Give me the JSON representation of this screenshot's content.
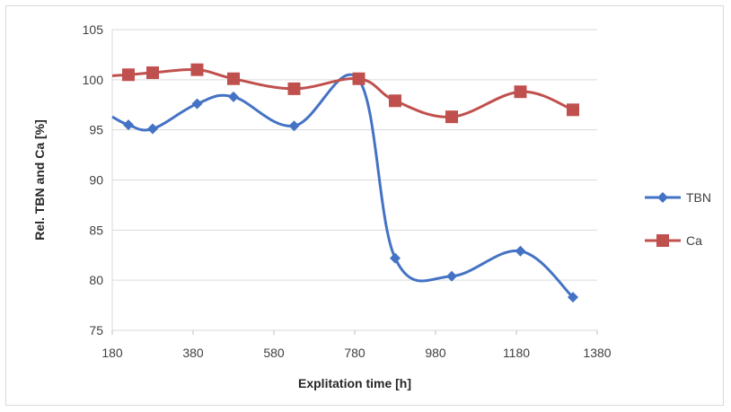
{
  "chart_data": {
    "type": "line",
    "title": "",
    "xlabel": "Explitation time [h]",
    "ylabel": "Rel. TBN and Ca [%]",
    "xlim": [
      180,
      1380
    ],
    "ylim": [
      75,
      105
    ],
    "xticks": [
      180,
      380,
      580,
      780,
      980,
      1180,
      1380
    ],
    "yticks": [
      75,
      80,
      85,
      90,
      95,
      100,
      105
    ],
    "grid": "horizontal",
    "legend_position": "right",
    "series": [
      {
        "name": "TBN",
        "color": "#4472c4",
        "marker": "diamond",
        "x": [
          180,
          220,
          280,
          390,
          480,
          630,
          790,
          880,
          1020,
          1190,
          1320
        ],
        "y": [
          96.3,
          95.5,
          95.1,
          97.6,
          98.3,
          95.4,
          100,
          82.2,
          80.4,
          82.9,
          78.3
        ]
      },
      {
        "name": "Ca",
        "color": "#c0504d",
        "marker": "square",
        "x": [
          180,
          220,
          280,
          390,
          480,
          630,
          790,
          880,
          1020,
          1190,
          1320
        ],
        "y": [
          100.4,
          100.5,
          100.7,
          101.0,
          100.1,
          99.1,
          100.1,
          97.9,
          96.3,
          98.8,
          97.0
        ]
      }
    ]
  }
}
